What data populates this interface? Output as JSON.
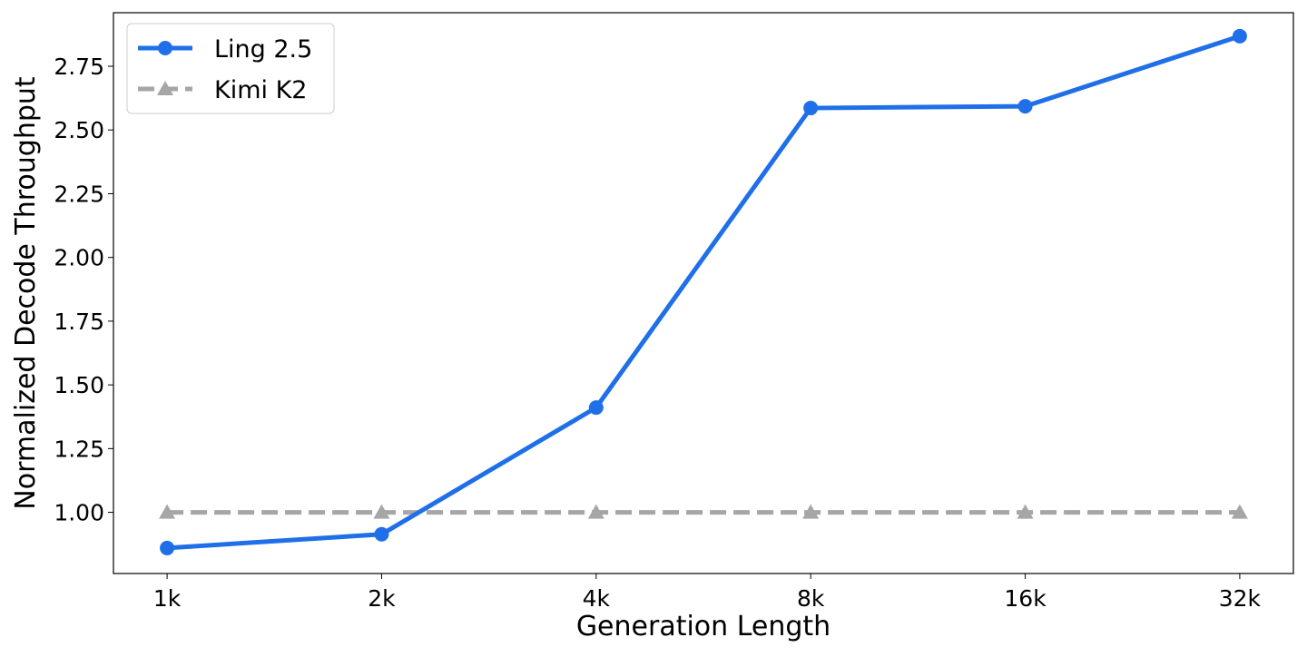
{
  "chart_data": {
    "type": "line",
    "title": "",
    "xlabel": "Generation Length",
    "ylabel": "Normalized Decode Throughput",
    "categories": [
      "1k",
      "2k",
      "4k",
      "8k",
      "16k",
      "32k"
    ],
    "ylim": [
      0.76,
      2.96
    ],
    "yticks": [
      "1.00",
      "1.25",
      "1.50",
      "1.75",
      "2.00",
      "2.25",
      "2.50",
      "2.75"
    ],
    "grid": false,
    "legend_position": "top-left",
    "series": [
      {
        "name": "Ling 2.5",
        "values": [
          0.86,
          0.914,
          1.411,
          2.586,
          2.593,
          2.868
        ],
        "color": "#1f6fe8",
        "marker": "circle",
        "linestyle": "solid"
      },
      {
        "name": "Kimi K2",
        "values": [
          1.0,
          1.0,
          1.0,
          1.0,
          1.0,
          1.0
        ],
        "color": "#a6a6a6",
        "marker": "triangle",
        "linestyle": "dashed"
      }
    ]
  }
}
